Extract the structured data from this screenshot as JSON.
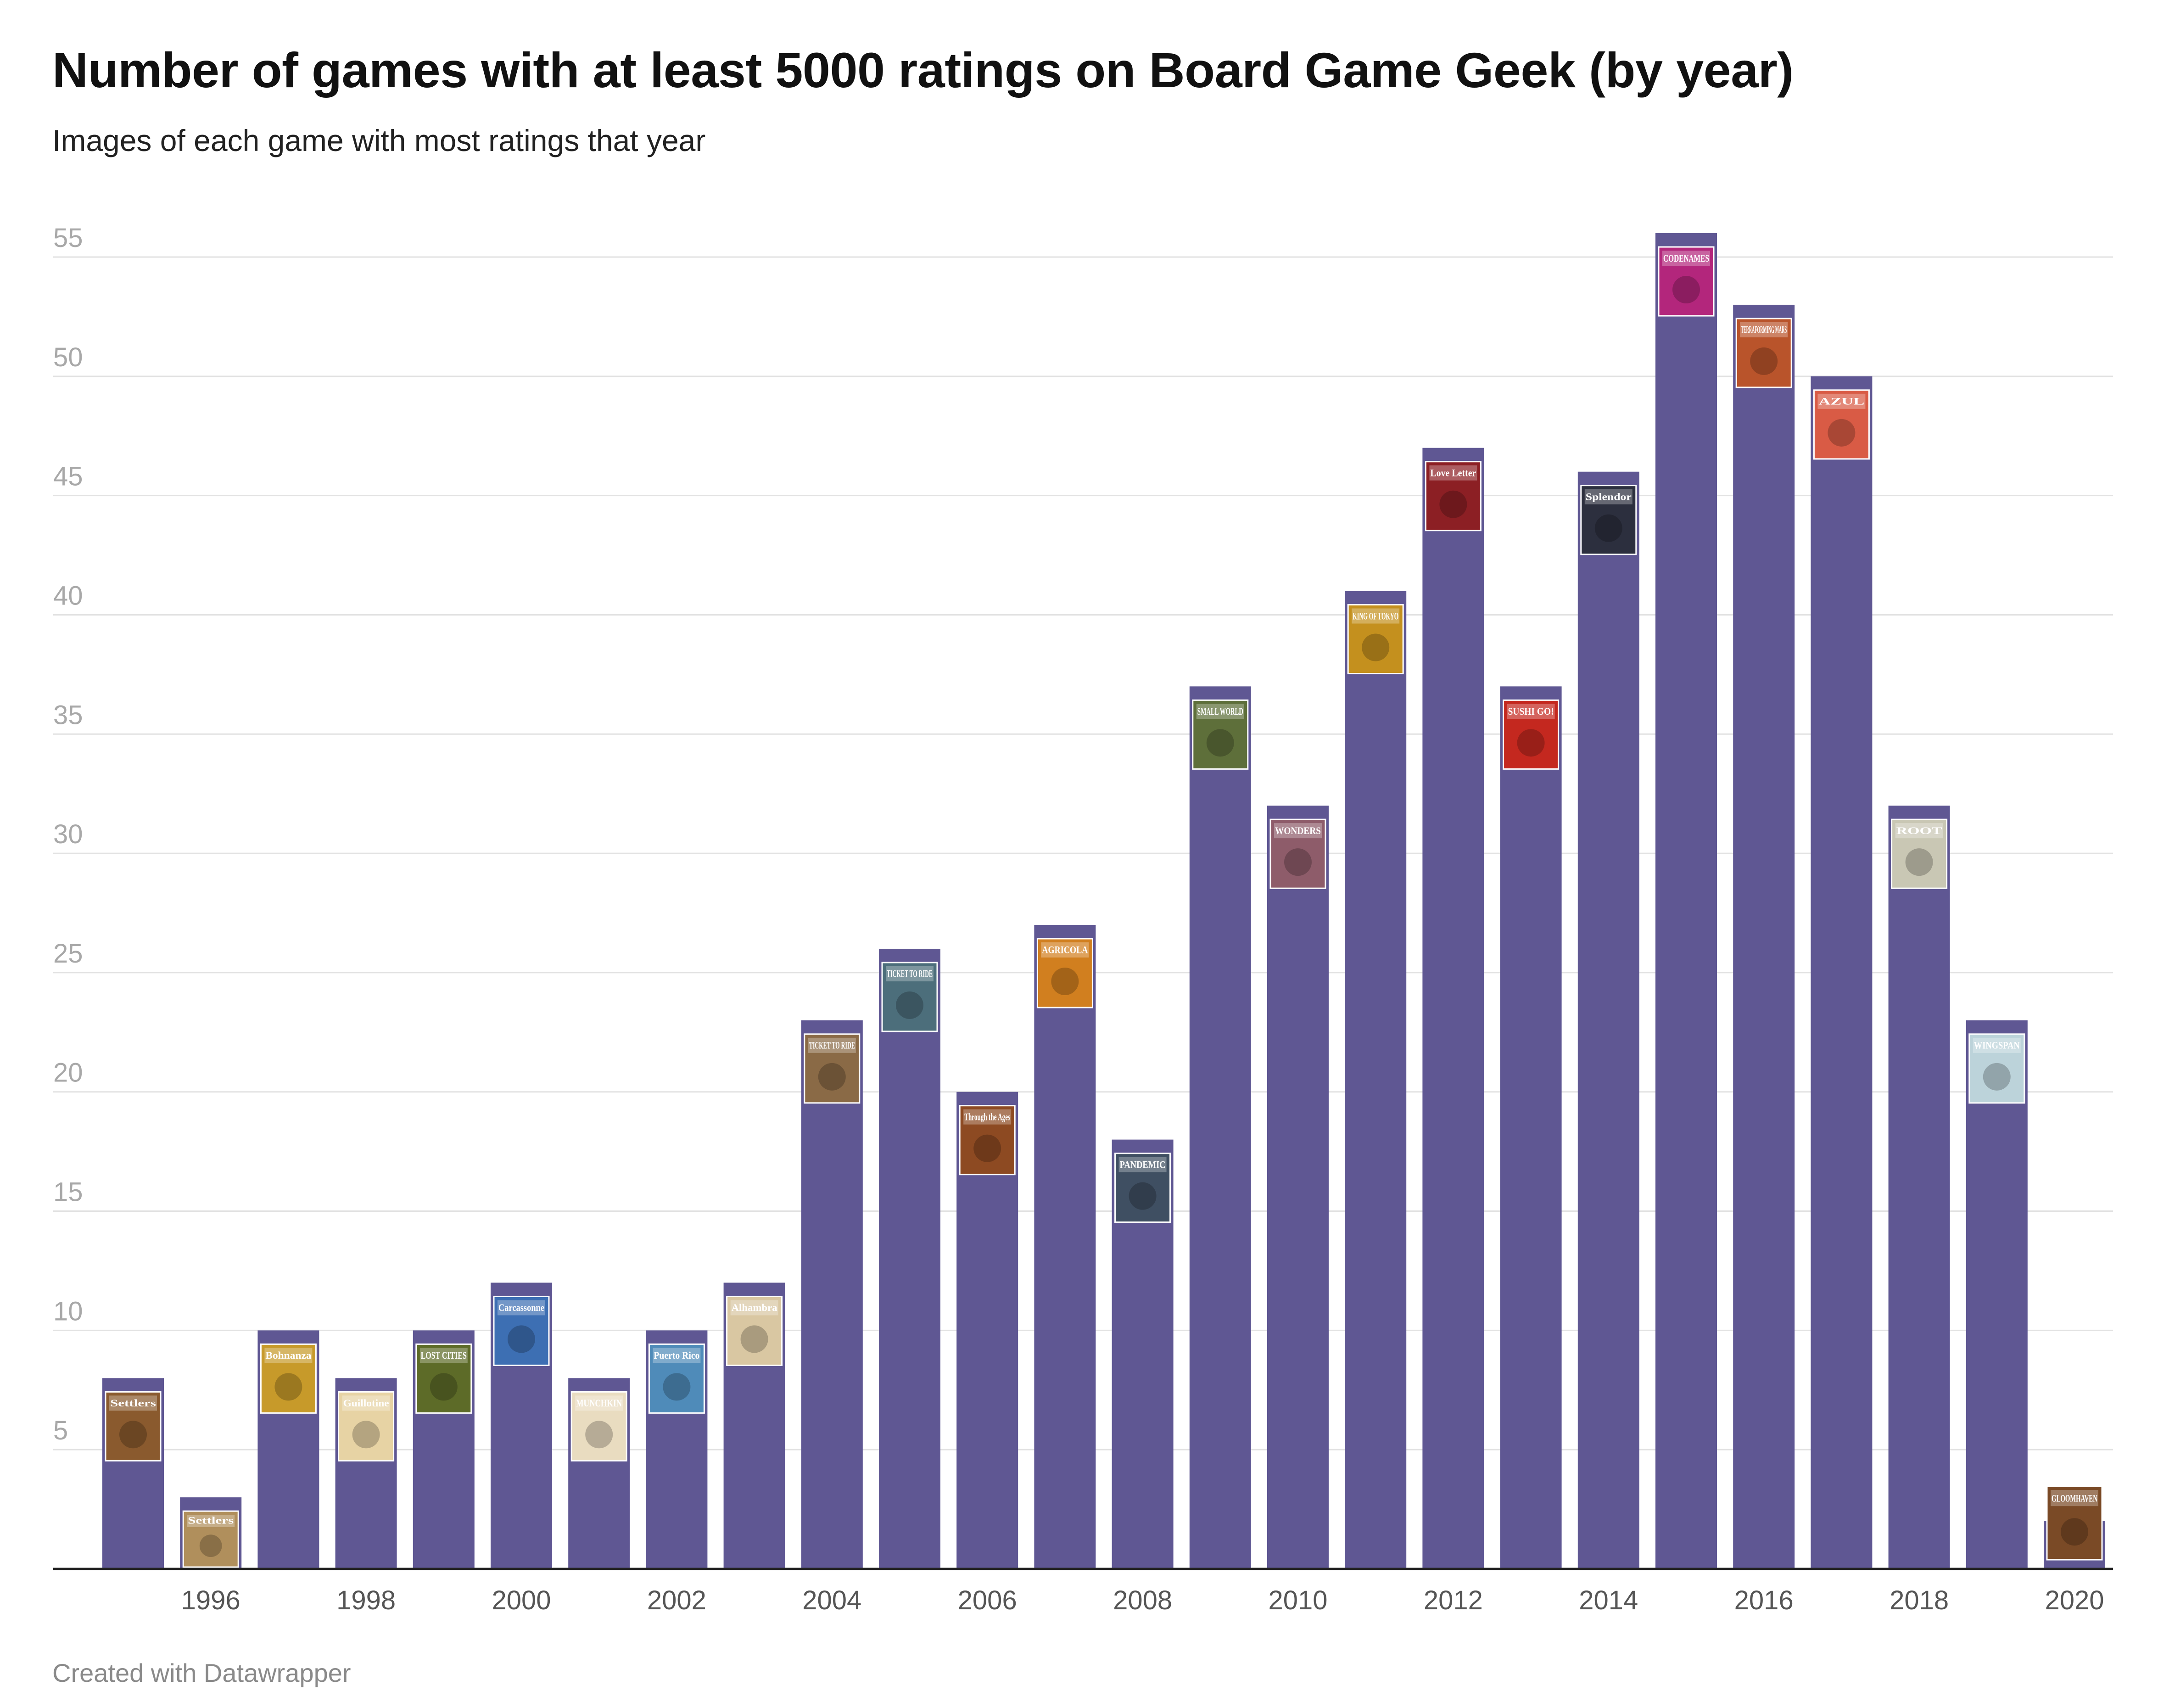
{
  "header": {
    "title": "Number of games with at least 5000 ratings on Board Game Geek (by year)",
    "subtitle": "Images of each game with most ratings that year"
  },
  "footer": {
    "credit": "Created with Datawrapper"
  },
  "colors": {
    "bar": "#5f5793",
    "grid": "#e2e2e2",
    "axis": "#222222"
  },
  "chart_data": {
    "type": "bar",
    "title": "Number of games with at least 5000 ratings on Board Game Geek (by year)",
    "subtitle": "Images of each game with most ratings that year",
    "xlabel": "",
    "ylabel": "",
    "ylim": [
      0,
      55
    ],
    "yticks": [
      5,
      10,
      15,
      20,
      25,
      30,
      35,
      40,
      45,
      50,
      55
    ],
    "x_tick_labels": [
      "1996",
      "1998",
      "2000",
      "2002",
      "2004",
      "2006",
      "2008",
      "2010",
      "2012",
      "2014",
      "2016",
      "2018",
      "2020"
    ],
    "grid": true,
    "categories": [
      1995,
      1996,
      1997,
      1998,
      1999,
      2000,
      2001,
      2002,
      2003,
      2004,
      2005,
      2006,
      2007,
      2008,
      2009,
      2010,
      2011,
      2012,
      2013,
      2014,
      2015,
      2016,
      2017,
      2018,
      2019,
      2020
    ],
    "values": [
      8,
      3,
      10,
      8,
      10,
      12,
      8,
      10,
      12,
      23,
      26,
      20,
      27,
      18,
      37,
      32,
      41,
      47,
      37,
      46,
      56,
      53,
      50,
      32,
      23,
      2
    ],
    "images": [
      {
        "year": 1995,
        "game": "Settlers",
        "label": "Settlers",
        "color": "#8a5a2e"
      },
      {
        "year": 1996,
        "game": "Settlers",
        "label": "Settlers",
        "color": "#b08f5c"
      },
      {
        "year": 1997,
        "game": "Bohnanza",
        "label": "Bohnanza",
        "color": "#c79a2a"
      },
      {
        "year": 1998,
        "game": "Guillotine",
        "label": "Guillotine",
        "color": "#e7d3a4"
      },
      {
        "year": 1999,
        "game": "Lost Cities",
        "label": "LOST CITIES",
        "color": "#5d6b28"
      },
      {
        "year": 2000,
        "game": "Carcassonne",
        "label": "Carcassonne",
        "color": "#3d6fb3"
      },
      {
        "year": 2001,
        "game": "Munchkin",
        "label": "MUNCHKIN",
        "color": "#e9dcc0"
      },
      {
        "year": 2002,
        "game": "Puerto Rico",
        "label": "Puerto Rico",
        "color": "#4f8bb9"
      },
      {
        "year": 2003,
        "game": "Alhambra",
        "label": "Alhambra",
        "color": "#d9c7a2"
      },
      {
        "year": 2004,
        "game": "Ticket to Ride",
        "label": "TICKET TO RIDE",
        "color": "#8a6a46"
      },
      {
        "year": 2005,
        "game": "Ticket to Ride: Europe",
        "label": "TICKET TO RIDE",
        "color": "#4c6e7b"
      },
      {
        "year": 2006,
        "game": "Through the Ages",
        "label": "Through the Ages",
        "color": "#8d4a22"
      },
      {
        "year": 2007,
        "game": "Agricola",
        "label": "AGRICOLA",
        "color": "#d17f1f"
      },
      {
        "year": 2008,
        "game": "Pandemic",
        "label": "PANDEMIC",
        "color": "#3f4f62"
      },
      {
        "year": 2009,
        "game": "Small World",
        "label": "SMALL WORLD",
        "color": "#5e6f3a"
      },
      {
        "year": 2010,
        "game": "7 Wonders",
        "label": "WONDERS",
        "color": "#8e5c6a"
      },
      {
        "year": 2011,
        "game": "King of Tokyo",
        "label": "KING OF TOKYO",
        "color": "#c4901e"
      },
      {
        "year": 2012,
        "game": "Love Letter",
        "label": "Love Letter",
        "color": "#8c1f24"
      },
      {
        "year": 2013,
        "game": "Sushi Go!",
        "label": "SUSHI GO!",
        "color": "#c4281f"
      },
      {
        "year": 2014,
        "game": "Splendor",
        "label": "Splendor",
        "color": "#2c2f3e"
      },
      {
        "year": 2015,
        "game": "Codenames",
        "label": "CODENAMES",
        "color": "#b3267c"
      },
      {
        "year": 2016,
        "game": "Terraforming Mars",
        "label": "TERRAFORMING MARS",
        "color": "#b9542b"
      },
      {
        "year": 2017,
        "game": "Azul",
        "label": "AZUL",
        "color": "#d95b45"
      },
      {
        "year": 2018,
        "game": "Root",
        "label": "ROOT",
        "color": "#c9c7b4"
      },
      {
        "year": 2019,
        "game": "Wingspan",
        "label": "WINGSPAN",
        "color": "#bcd3da"
      },
      {
        "year": 2020,
        "game": "Gloomhaven",
        "label": "GLOOMHAVEN",
        "color": "#7a4a26"
      }
    ]
  }
}
